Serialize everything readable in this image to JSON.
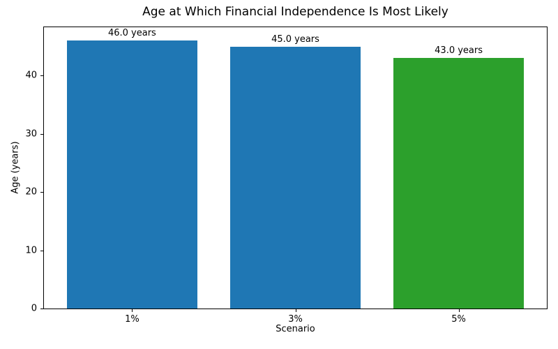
{
  "chart_data": {
    "type": "bar",
    "title": "Age at Which Financial Independence Is Most Likely",
    "xlabel": "Scenario",
    "ylabel": "Age (years)",
    "categories": [
      "1%",
      "3%",
      "5%"
    ],
    "values": [
      46.0,
      45.0,
      43.0
    ],
    "bar_labels": [
      "46.0 years",
      "45.0 years",
      "43.0 years"
    ],
    "bar_colors": [
      "#1f77b4",
      "#1f77b4",
      "#2ca02c"
    ],
    "yticks": [
      0,
      10,
      20,
      30,
      40
    ],
    "ylim": [
      0,
      48.3
    ],
    "xlim": [
      -0.54,
      2.54
    ],
    "bar_width": 0.8,
    "grid": false,
    "legend": null,
    "spine_color": "#000000",
    "background_color": "#ffffff"
  }
}
